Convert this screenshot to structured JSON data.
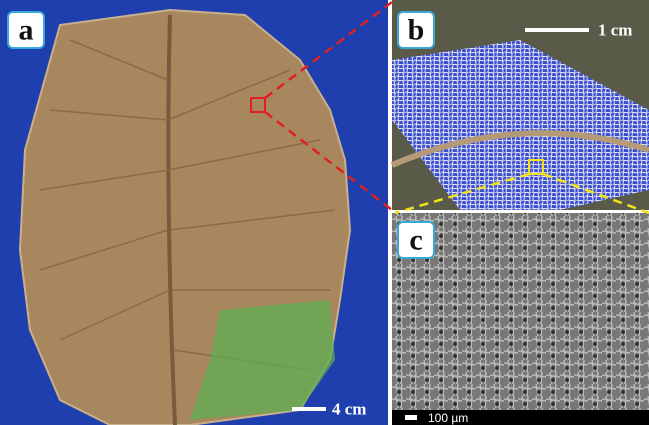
{
  "panels": [
    {
      "label": "a",
      "scale_bar": "4 cm"
    },
    {
      "label": "b",
      "scale_bar": "1 cm"
    },
    {
      "label": "c",
      "scale_bar": "100 µm"
    }
  ]
}
